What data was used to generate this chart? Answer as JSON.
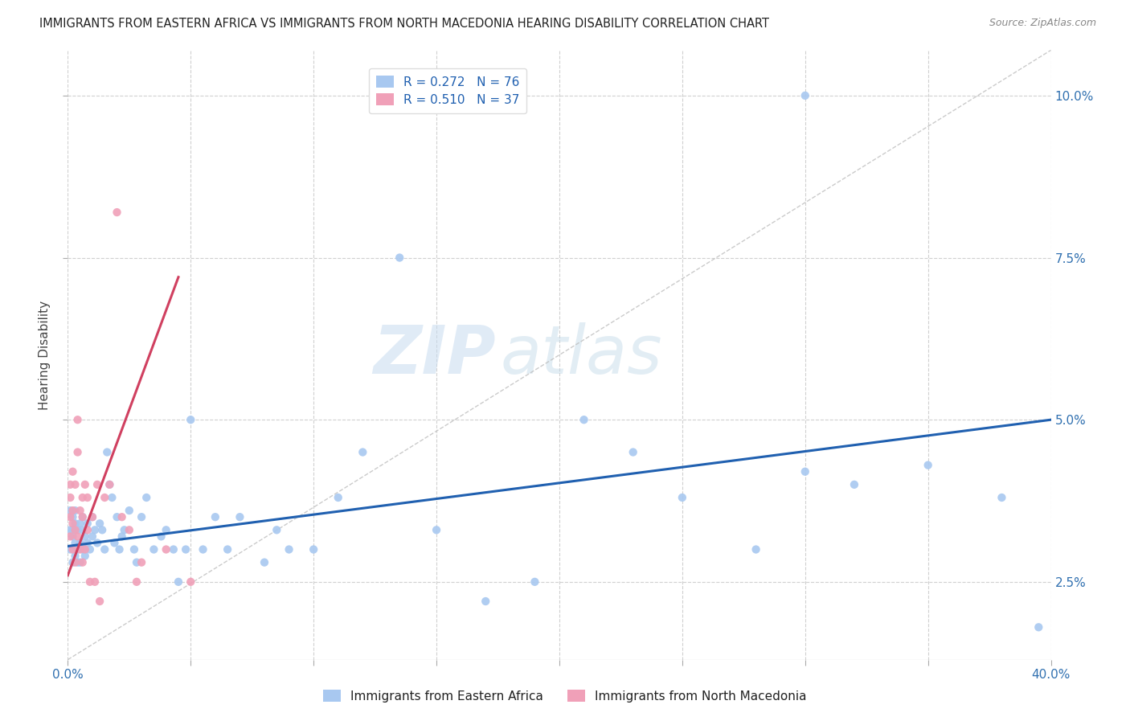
{
  "title": "IMMIGRANTS FROM EASTERN AFRICA VS IMMIGRANTS FROM NORTH MACEDONIA HEARING DISABILITY CORRELATION CHART",
  "source": "Source: ZipAtlas.com",
  "ylabel": "Hearing Disability",
  "ytick_labels": [
    "2.5%",
    "5.0%",
    "7.5%",
    "10.0%"
  ],
  "ytick_values": [
    0.025,
    0.05,
    0.075,
    0.1
  ],
  "xlim": [
    0.0,
    0.4
  ],
  "ylim": [
    0.013,
    0.107
  ],
  "r_eastern": 0.272,
  "n_eastern": 76,
  "r_macedonia": 0.51,
  "n_macedonia": 37,
  "color_eastern": "#A8C8F0",
  "color_macedonia": "#F0A0B8",
  "color_eastern_line": "#2060B0",
  "color_macedonia_line": "#D04060",
  "color_diagonal": "#BEBEBE",
  "background_color": "#FFFFFF",
  "watermark_zip": "ZIP",
  "watermark_atlas": "atlas",
  "eastern_scatter_x": [
    0.001,
    0.001,
    0.001,
    0.002,
    0.002,
    0.002,
    0.002,
    0.003,
    0.003,
    0.003,
    0.003,
    0.004,
    0.004,
    0.004,
    0.005,
    0.005,
    0.005,
    0.006,
    0.006,
    0.006,
    0.007,
    0.007,
    0.008,
    0.008,
    0.009,
    0.01,
    0.01,
    0.011,
    0.012,
    0.013,
    0.014,
    0.015,
    0.016,
    0.017,
    0.018,
    0.019,
    0.02,
    0.021,
    0.022,
    0.023,
    0.025,
    0.027,
    0.028,
    0.03,
    0.032,
    0.035,
    0.038,
    0.04,
    0.043,
    0.045,
    0.048,
    0.05,
    0.055,
    0.06,
    0.065,
    0.07,
    0.08,
    0.085,
    0.09,
    0.1,
    0.11,
    0.12,
    0.135,
    0.15,
    0.17,
    0.19,
    0.21,
    0.23,
    0.25,
    0.28,
    0.3,
    0.32,
    0.3,
    0.35,
    0.38,
    0.395
  ],
  "eastern_scatter_y": [
    0.033,
    0.03,
    0.036,
    0.035,
    0.032,
    0.028,
    0.033,
    0.031,
    0.034,
    0.029,
    0.036,
    0.03,
    0.033,
    0.028,
    0.034,
    0.031,
    0.028,
    0.033,
    0.03,
    0.035,
    0.032,
    0.029,
    0.034,
    0.031,
    0.03,
    0.035,
    0.032,
    0.033,
    0.031,
    0.034,
    0.033,
    0.03,
    0.045,
    0.04,
    0.038,
    0.031,
    0.035,
    0.03,
    0.032,
    0.033,
    0.036,
    0.03,
    0.028,
    0.035,
    0.038,
    0.03,
    0.032,
    0.033,
    0.03,
    0.025,
    0.03,
    0.05,
    0.03,
    0.035,
    0.03,
    0.035,
    0.028,
    0.033,
    0.03,
    0.03,
    0.038,
    0.045,
    0.075,
    0.033,
    0.022,
    0.025,
    0.05,
    0.045,
    0.038,
    0.03,
    0.042,
    0.04,
    0.1,
    0.043,
    0.038,
    0.018
  ],
  "macedonia_scatter_x": [
    0.001,
    0.001,
    0.001,
    0.001,
    0.002,
    0.002,
    0.002,
    0.002,
    0.003,
    0.003,
    0.003,
    0.004,
    0.004,
    0.004,
    0.005,
    0.005,
    0.006,
    0.006,
    0.006,
    0.007,
    0.007,
    0.008,
    0.008,
    0.009,
    0.01,
    0.011,
    0.012,
    0.013,
    0.015,
    0.017,
    0.02,
    0.022,
    0.025,
    0.028,
    0.03,
    0.04,
    0.05
  ],
  "macedonia_scatter_y": [
    0.035,
    0.04,
    0.032,
    0.038,
    0.034,
    0.042,
    0.03,
    0.036,
    0.033,
    0.04,
    0.028,
    0.045,
    0.05,
    0.032,
    0.03,
    0.036,
    0.035,
    0.038,
    0.028,
    0.04,
    0.03,
    0.033,
    0.038,
    0.025,
    0.035,
    0.025,
    0.04,
    0.022,
    0.038,
    0.04,
    0.082,
    0.035,
    0.033,
    0.025,
    0.028,
    0.03,
    0.025
  ],
  "xtick_positions": [
    0.0,
    0.05,
    0.1,
    0.15,
    0.2,
    0.25,
    0.3,
    0.35,
    0.4
  ],
  "eastern_line_x": [
    0.0,
    0.4
  ],
  "eastern_line_y": [
    0.0305,
    0.05
  ],
  "macedonia_line_x": [
    0.0,
    0.045
  ],
  "macedonia_line_y": [
    0.026,
    0.072
  ]
}
